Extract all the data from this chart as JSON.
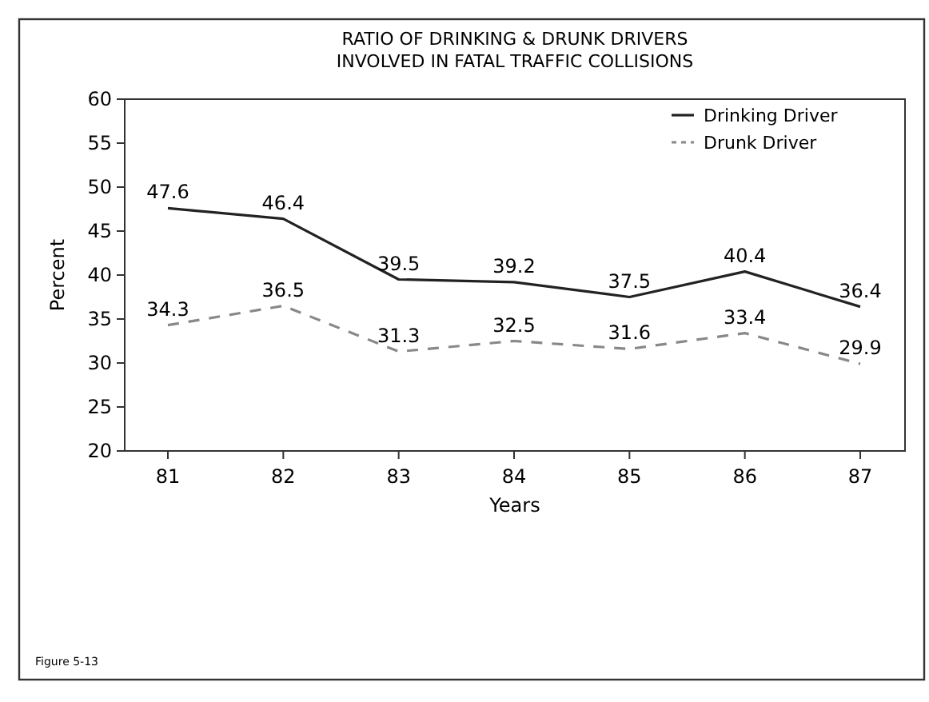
{
  "chart_data": {
    "type": "line",
    "title": "RATIO OF DRINKING & DRUNK DRIVERS\nINVOLVED IN FATAL TRAFFIC COLLISIONS",
    "xlabel": "Years",
    "ylabel": "Percent",
    "categories": [
      "81",
      "82",
      "83",
      "84",
      "85",
      "86",
      "87"
    ],
    "series": [
      {
        "name": "Drinking Driver",
        "color": "#222222",
        "line_style": "solid",
        "values": [
          47.6,
          46.4,
          39.5,
          39.2,
          37.5,
          40.4,
          36.4
        ]
      },
      {
        "name": "Drunk Driver",
        "color": "#888888",
        "line_style": "dashed",
        "values": [
          34.3,
          36.5,
          31.3,
          32.5,
          31.6,
          33.4,
          29.9
        ]
      }
    ],
    "ylim": [
      20,
      60
    ],
    "yticks": [
      20,
      25,
      30,
      35,
      40,
      45,
      50,
      55,
      60
    ],
    "data_labels": true,
    "legend": "top right",
    "annotations": [
      "Figure 5-13"
    ]
  }
}
